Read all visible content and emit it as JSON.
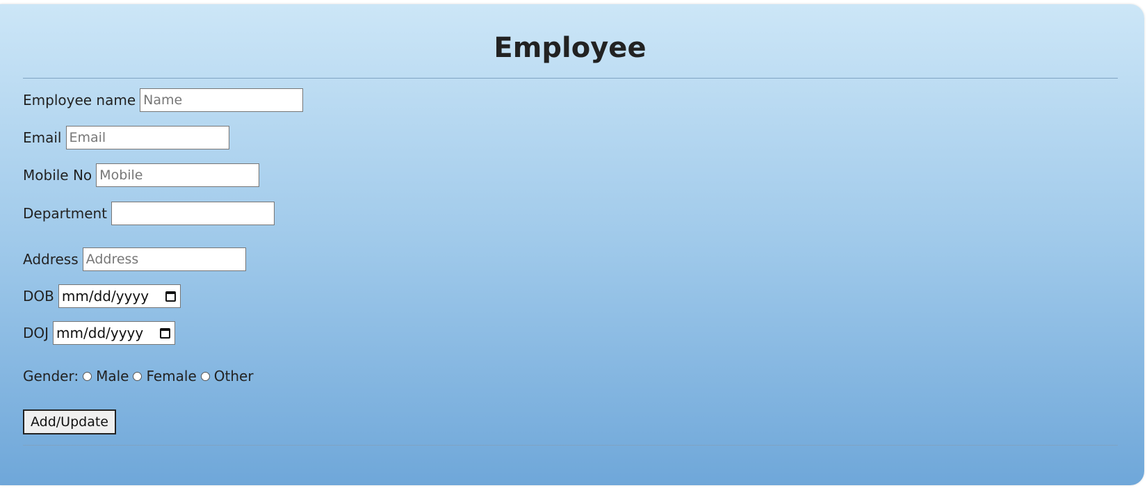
{
  "form": {
    "title": "Employee",
    "fields": {
      "name": {
        "label": "Employee name",
        "placeholder": "Name",
        "value": ""
      },
      "email": {
        "label": "Email",
        "placeholder": "Email",
        "value": ""
      },
      "mobile": {
        "label": "Mobile No",
        "placeholder": "Mobile",
        "value": ""
      },
      "department": {
        "label": "Department",
        "placeholder": "",
        "value": ""
      },
      "address": {
        "label": "Address",
        "placeholder": "Address",
        "value": ""
      },
      "dob": {
        "label": "DOB",
        "display": "mm/dd/yyyy"
      },
      "doj": {
        "label": "DOJ",
        "display": "mm/dd/yyyy"
      }
    },
    "gender": {
      "label": "Gender:",
      "options": [
        "Male",
        "Female",
        "Other"
      ]
    },
    "submit_label": "Add/Update",
    "icons": {
      "date_picker": "calendar-icon"
    }
  }
}
